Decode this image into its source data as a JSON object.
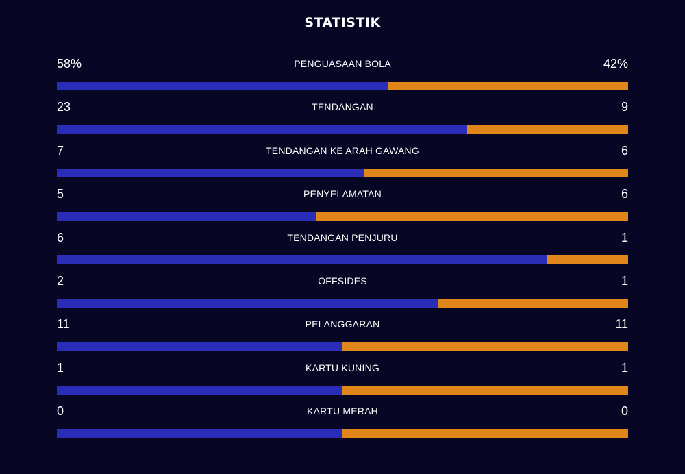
{
  "title": "STATISTIK",
  "colors": {
    "background": "#070624",
    "home": "#2a2db8",
    "away": "#e0861a"
  },
  "stats": [
    {
      "label": "PENGUASAAN BOLA",
      "home": "58%",
      "away": "42%",
      "home_value": 58,
      "away_value": 42
    },
    {
      "label": "TENDANGAN",
      "home": "23",
      "away": "9",
      "home_value": 23,
      "away_value": 9
    },
    {
      "label": "TENDANGAN KE ARAH GAWANG",
      "home": "7",
      "away": "6",
      "home_value": 7,
      "away_value": 6
    },
    {
      "label": "PENYELAMATAN",
      "home": "5",
      "away": "6",
      "home_value": 5,
      "away_value": 6
    },
    {
      "label": "TENDANGAN PENJURU",
      "home": "6",
      "away": "1",
      "home_value": 6,
      "away_value": 1
    },
    {
      "label": "OFFSIDES",
      "home": "2",
      "away": "1",
      "home_value": 2,
      "away_value": 1
    },
    {
      "label": "PELANGGARAN",
      "home": "11",
      "away": "11",
      "home_value": 11,
      "away_value": 11
    },
    {
      "label": "KARTU KUNING",
      "home": "1",
      "away": "1",
      "home_value": 1,
      "away_value": 1
    },
    {
      "label": "KARTU MERAH",
      "home": "0",
      "away": "0",
      "home_value": 0,
      "away_value": 0
    }
  ]
}
